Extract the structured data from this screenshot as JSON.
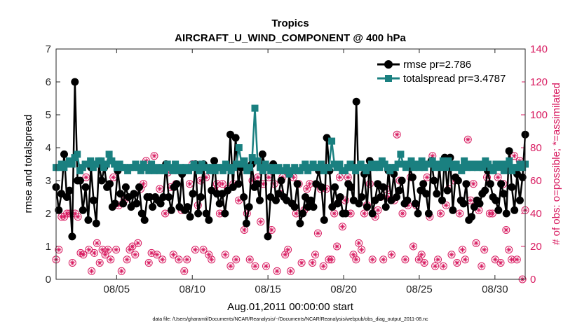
{
  "chart_data": {
    "type": "line",
    "title": "Tropics",
    "subtitle": "AIRCRAFT_U_WIND_COMPONENT @ 400 hPa",
    "xlabel": "Aug.01,2011 00:00:00 start",
    "ylabel": "rmse and totalspread",
    "ylabel_right": "# of obs: o=possible; *=assimilated",
    "x_tick_labels": [
      "08/05",
      "08/10",
      "08/15",
      "08/20",
      "08/25",
      "08/30"
    ],
    "x_tick_days": [
      5,
      10,
      15,
      20,
      25,
      30
    ],
    "xlim": [
      1,
      32
    ],
    "ylim": [
      0,
      7
    ],
    "ylim_right": [
      0,
      140
    ],
    "y_ticks": [
      "0",
      "1",
      "2",
      "3",
      "4",
      "5",
      "6",
      "7"
    ],
    "y_ticks_right": [
      "0",
      "20",
      "40",
      "60",
      "80",
      "100",
      "120",
      "140"
    ],
    "legend_position": "top-right",
    "colors": {
      "rmse": "#000000",
      "spread": "#1a8080",
      "obs": "#d81b60"
    },
    "series": [
      {
        "name": "rmse pr=2.786",
        "values": [
          2.8,
          2.1,
          2.6,
          3.8,
          2.5,
          2.7,
          1.3,
          6.0,
          3.0,
          3.0,
          2.1,
          2.8,
          1.8,
          3.4,
          2.4,
          1.7,
          3.5,
          3.0,
          3.4,
          2.8,
          2.9,
          2.2,
          2.3,
          3.3,
          2.6,
          2.3,
          2.8,
          2.5,
          2.2,
          2.6,
          2.3,
          2.8,
          2.0,
          1.8,
          2.5,
          2.5,
          2.2,
          2.5,
          2.4,
          2.3,
          2.5,
          3.5,
          2.5,
          2.1,
          2.8,
          2.9,
          2.2,
          3.2,
          2.1,
          2.2,
          1.9,
          2.6,
          3.5,
          2.0,
          2.5,
          3.5,
          2.0,
          1.8,
          2.7,
          3.6,
          2.6,
          2.3,
          2.6,
          2.0,
          2.7,
          4.4,
          2.8,
          4.3,
          2.9,
          3.4,
          2.5,
          1.7,
          2.2,
          3.5,
          2.8,
          2.9,
          2.4,
          3.8,
          3.4,
          1.3,
          2.5,
          3.5,
          2.4,
          2.6,
          3.0,
          2.5,
          2.4,
          3.2,
          2.3,
          2.2,
          2.9,
          1.7,
          2.0,
          2.5,
          2.2,
          2.4,
          2.2,
          2.9,
          3.3,
          2.8,
          1.8,
          4.3,
          3.3,
          2.2,
          2.8,
          2.3,
          2.5,
          2.0,
          2.0,
          2.9,
          2.8,
          2.4,
          5.4,
          2.3,
          2.5,
          3.2,
          2.2,
          3.6,
          2.0,
          2.4,
          2.9,
          2.5,
          2.8,
          2.2,
          3.3,
          2.4,
          3.2,
          2.5,
          2.7,
          3.0,
          2.3,
          2.4,
          3.4,
          3.1,
          2.3,
          2.0,
          2.7,
          2.9,
          2.6,
          2.0,
          3.6,
          3.0,
          2.6,
          3.4,
          2.4,
          3.7,
          2.7,
          3.7,
          2.1,
          3.1,
          3.0,
          2.4,
          2.3,
          2.9,
          1.8,
          1.9,
          2.2,
          2.4,
          2.3,
          2.6,
          2.7,
          3.3,
          2.9,
          2.5,
          2.4,
          2.1,
          2.9,
          2.6,
          2.0,
          3.9,
          2.8,
          2.1,
          3.2,
          2.4,
          3.1,
          4.4
        ]
      },
      {
        "name": "totalspread pr=3.4787",
        "values": [
          3.4,
          3.4,
          3.5,
          3.4,
          3.5,
          3.6,
          3.5,
          3.7,
          3.8,
          3.3,
          3.4,
          3.5,
          3.5,
          3.6,
          3.4,
          3.5,
          3.6,
          3.6,
          3.4,
          3.5,
          3.8,
          3.6,
          3.5,
          3.4,
          3.5,
          3.4,
          3.4,
          3.3,
          3.4,
          3.4,
          3.5,
          3.4,
          3.3,
          3.5,
          3.4,
          3.3,
          3.5,
          3.3,
          3.4,
          3.3,
          3.4,
          3.3,
          3.5,
          3.4,
          3.3,
          3.5,
          3.3,
          3.4,
          3.3,
          3.4,
          3.3,
          3.4,
          3.5,
          3.4,
          3.3,
          3.5,
          3.4,
          3.4,
          3.3,
          3.4,
          3.3,
          3.4,
          3.4,
          3.3,
          3.5,
          3.4,
          3.3,
          3.4,
          3.5,
          4.0,
          3.5,
          3.6,
          3.3,
          3.4,
          3.7,
          5.2,
          3.6,
          3.4,
          3.3,
          3.5,
          3.4,
          3.3,
          3.4,
          3.3,
          3.4,
          3.3,
          3.3,
          3.4,
          3.2,
          3.3,
          3.4,
          3.3,
          3.3,
          3.4,
          3.5,
          3.3,
          3.4,
          3.5,
          3.4,
          3.4,
          3.5,
          3.3,
          3.4,
          3.4,
          4.2,
          3.5,
          3.4,
          3.5,
          3.3,
          3.3,
          3.4,
          3.5,
          3.4,
          3.3,
          3.4,
          3.5,
          3.4,
          3.3,
          3.4,
          3.5,
          3.4,
          3.5,
          3.4,
          3.6,
          3.5,
          3.4,
          3.3,
          3.4,
          3.4,
          3.5,
          3.8,
          3.5,
          3.4,
          3.5,
          3.6,
          3.4,
          3.5,
          3.4,
          3.6,
          3.4,
          3.5,
          3.5,
          3.6,
          3.4,
          3.5,
          3.4,
          3.6,
          3.4,
          3.6,
          3.5,
          3.4,
          3.5,
          3.4,
          3.3,
          3.6,
          3.4,
          3.5,
          3.4,
          3.5,
          3.4,
          3.5,
          3.4,
          3.6,
          3.5,
          3.4,
          3.3,
          3.5,
          3.4,
          3.5,
          3.3,
          3.5,
          3.6,
          3.3,
          3.4,
          3.4,
          3.5,
          3.4,
          3.5
        ]
      },
      {
        "name": "# of obs (o=possible, *=assimilated)",
        "values": [
          12,
          18,
          38,
          38,
          40,
          40,
          10,
          40,
          38,
          16,
          15,
          62,
          18,
          5,
          16,
          22,
          10,
          18,
          15,
          18,
          12,
          62,
          18,
          45,
          5,
          48,
          12,
          18,
          20,
          15,
          22,
          55,
          58,
          72,
          10,
          16,
          75,
          15,
          55,
          12,
          40,
          65,
          56,
          15,
          58,
          12,
          42,
          5,
          12,
          58,
          70,
          18,
          45,
          60,
          18,
          62,
          15,
          12,
          55,
          58,
          40,
          58,
          15,
          55,
          8,
          58,
          12,
          48,
          70,
          30,
          40,
          12,
          60,
          8,
          62,
          35,
          58,
          8,
          62,
          30,
          58,
          5,
          52,
          62,
          15,
          18,
          5,
          62,
          40,
          58,
          10,
          42,
          55,
          58,
          10,
          15,
          28,
          55,
          8,
          55,
          12,
          12,
          40,
          20,
          62,
          32,
          48,
          62,
          40,
          15,
          12,
          22,
          18,
          40,
          45,
          58,
          12,
          38,
          42,
          50,
          12,
          55,
          50,
          15,
          48,
          88,
          60,
          40,
          12,
          45,
          62,
          20,
          45,
          12,
          15,
          10,
          62,
          38,
          75,
          8,
          12,
          40,
          8,
          45,
          55,
          15,
          60,
          10,
          40,
          18,
          12,
          85,
          48,
          58,
          22,
          42,
          8,
          18,
          62,
          40,
          40,
          12,
          62,
          10,
          58,
          30,
          18,
          12,
          75,
          12,
          72,
          0,
          42
        ]
      }
    ]
  },
  "footnote": "data file: /Users/gharamti/Documents/NCAR/Reanalysis/~/Documents/NCAR/Reanalysis/webpub/obs_diag_output_2011-08.nc",
  "legend": {
    "rmse_label": "rmse pr=2.786",
    "spread_label": "totalspread pr=3.4787"
  }
}
